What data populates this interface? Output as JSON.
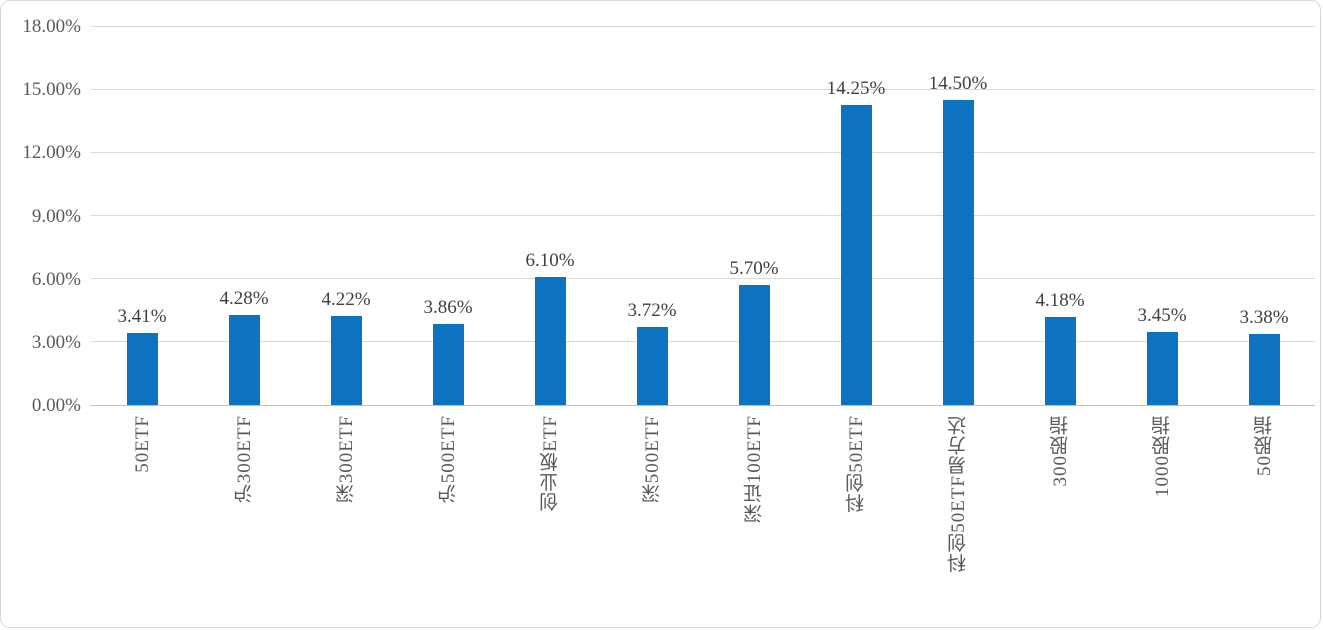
{
  "figure": {
    "background_color": "#ffffff",
    "border_color": "#d8d8d8"
  },
  "chart_data": {
    "type": "bar",
    "title": "",
    "xlabel": "",
    "ylabel": "",
    "categories": [
      "50ETF",
      "沪300ETF",
      "深300ETF",
      "沪500ETF",
      "创业板ETF",
      "深500ETF",
      "深证100ETF",
      "科创50ETF",
      "科创50ETF易方达",
      "300股指",
      "1000股指",
      "50股指"
    ],
    "values": [
      3.41,
      4.28,
      4.22,
      3.86,
      6.1,
      3.72,
      5.7,
      14.25,
      14.5,
      4.18,
      3.45,
      3.38
    ],
    "value_labels": [
      "3.41%",
      "4.28%",
      "4.22%",
      "3.86%",
      "6.10%",
      "3.72%",
      "5.70%",
      "14.25%",
      "14.50%",
      "4.18%",
      "3.45%",
      "3.38%"
    ],
    "y_ticks": [
      {
        "value": 18,
        "label": "18.00%"
      },
      {
        "value": 15,
        "label": "15.00%"
      },
      {
        "value": 12,
        "label": "12.00%"
      },
      {
        "value": 9,
        "label": "9.00%"
      },
      {
        "value": 6,
        "label": "6.00%"
      },
      {
        "value": 3,
        "label": "3.00%"
      },
      {
        "value": 0,
        "label": "0.00%"
      }
    ],
    "ylim": [
      0,
      18
    ],
    "grid": true,
    "legend": "none",
    "x_labels_rotated_bottom_to_top": true,
    "colors": {
      "bar": "#0d72bf",
      "gridline": "#d9d9d9",
      "axis_line": "#c0c0c0",
      "tick_label": "#595959",
      "value_label": "#404040"
    }
  }
}
